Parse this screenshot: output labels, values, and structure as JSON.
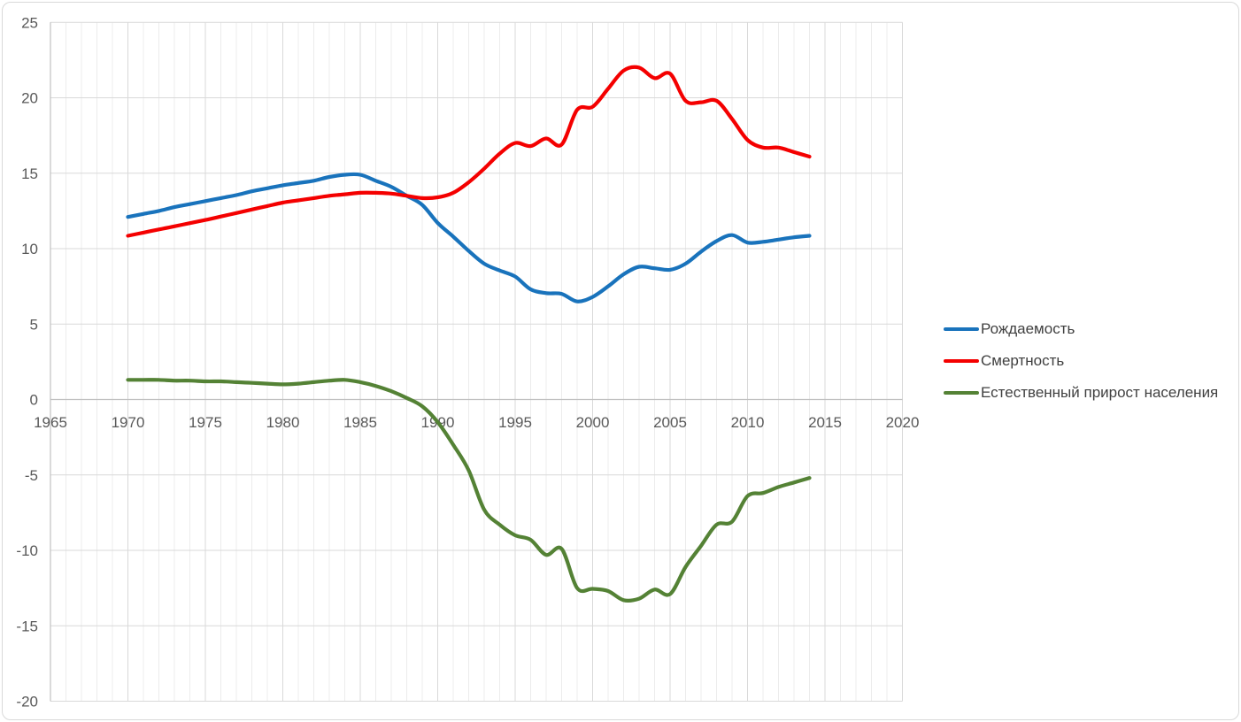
{
  "chart_data": {
    "type": "line",
    "smooth": true,
    "grid": {
      "vertical_minor_every_year": true,
      "major_step_years": 5,
      "horizontal_step": 5
    },
    "legend_position": "right",
    "xlim": [
      1965,
      2020
    ],
    "ylim": [
      -20,
      25
    ],
    "x_ticks": [
      1965,
      1970,
      1975,
      1980,
      1985,
      1990,
      1995,
      2000,
      2005,
      2010,
      2015,
      2020
    ],
    "y_ticks": [
      25,
      20,
      15,
      10,
      5,
      0,
      -5,
      -10,
      -15,
      -20
    ],
    "x": [
      1970,
      1971,
      1972,
      1973,
      1974,
      1975,
      1976,
      1977,
      1978,
      1979,
      1980,
      1981,
      1982,
      1983,
      1984,
      1985,
      1986,
      1987,
      1988,
      1989,
      1990,
      1991,
      1992,
      1993,
      1994,
      1995,
      1996,
      1997,
      1998,
      1999,
      2000,
      2001,
      2002,
      2003,
      2004,
      2005,
      2006,
      2007,
      2008,
      2009,
      2010,
      2011,
      2012,
      2013,
      2014
    ],
    "series": [
      {
        "key": "birth-rate",
        "name": "Рождаемость",
        "color": "#1973BC",
        "values": [
          12.1,
          12.3,
          12.5,
          12.75,
          12.95,
          13.15,
          13.35,
          13.55,
          13.8,
          14.0,
          14.2,
          14.35,
          14.5,
          14.75,
          14.9,
          14.9,
          14.5,
          14.1,
          13.5,
          12.9,
          11.7,
          10.8,
          9.85,
          9.0,
          8.55,
          8.15,
          7.3,
          7.05,
          7.0,
          6.5,
          6.8,
          7.5,
          8.3,
          8.8,
          8.7,
          8.6,
          9.0,
          9.8,
          10.5,
          10.9,
          10.4,
          10.45,
          10.6,
          10.75,
          10.85
        ]
      },
      {
        "key": "death-rate",
        "name": "Смертность",
        "color": "#F40000",
        "values": [
          10.85,
          11.06,
          11.27,
          11.48,
          11.69,
          11.9,
          12.13,
          12.36,
          12.59,
          12.82,
          13.05,
          13.2,
          13.35,
          13.5,
          13.6,
          13.7,
          13.7,
          13.65,
          13.5,
          13.35,
          13.4,
          13.7,
          14.4,
          15.3,
          16.3,
          17.0,
          16.8,
          17.3,
          16.9,
          19.2,
          19.4,
          20.6,
          21.8,
          22.0,
          21.3,
          21.6,
          19.8,
          19.7,
          19.8,
          18.6,
          17.2,
          16.7,
          16.7,
          16.4,
          16.1
        ]
      },
      {
        "key": "natural-increase",
        "name": "Естественный прирост населения",
        "color": "#548235",
        "values": [
          1.3,
          1.3,
          1.3,
          1.25,
          1.25,
          1.2,
          1.2,
          1.15,
          1.1,
          1.05,
          1.0,
          1.05,
          1.15,
          1.25,
          1.3,
          1.15,
          0.9,
          0.55,
          0.1,
          -0.45,
          -1.5,
          -3.0,
          -4.7,
          -7.3,
          -8.3,
          -9.0,
          -9.3,
          -10.3,
          -9.9,
          -12.5,
          -12.55,
          -12.7,
          -13.3,
          -13.2,
          -12.6,
          -12.9,
          -11.1,
          -9.7,
          -8.3,
          -8.1,
          -6.4,
          -6.2,
          -5.8,
          -5.5,
          -5.2
        ]
      }
    ]
  }
}
